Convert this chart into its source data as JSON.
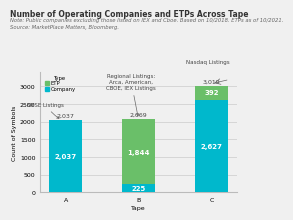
{
  "title": "Number of Operating Companies and ETPs Across Tape",
  "note1": "Note: Public companies excluding those listed on IEX and Cboe. Based on 10/2018. ETPs as of 10/2021.",
  "note2": "Source: MarketPlace Matters, Bloomberg.",
  "categories": [
    "A",
    "B",
    "C"
  ],
  "company_values": [
    2037,
    225,
    2627
  ],
  "etp_values": [
    0,
    1844,
    392
  ],
  "total_labels": [
    2037,
    2069,
    3019
  ],
  "company_color": "#00b8cc",
  "etp_color": "#6abf69",
  "ylabel": "Count of Symbols",
  "xlabel": "Tape",
  "yticks": [
    0,
    500,
    1000,
    1500,
    2000,
    2500,
    3000
  ],
  "ylim": [
    0,
    3400
  ],
  "annotation_nyse": "NYSE Listings",
  "annotation_regional": "Regional Listings:\nArca, American,\nCBOE, IEX Listings",
  "annotation_nasdaq": "Nasdaq Listings",
  "bg_color": "#f0f0f0",
  "title_fontsize": 5.5,
  "note_fontsize": 3.8,
  "label_fontsize": 4.5,
  "tick_fontsize": 4.5,
  "bar_label_fontsize": 5,
  "total_label_fontsize": 4.5,
  "annot_fontsize": 4.0
}
